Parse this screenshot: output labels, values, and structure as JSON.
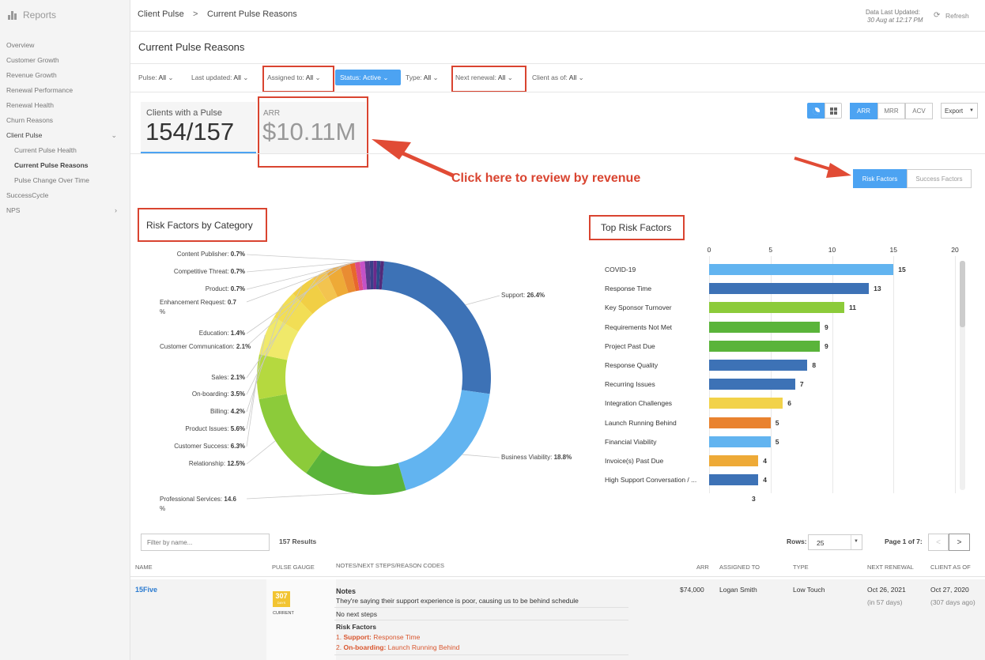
{
  "sidebar": {
    "brand": "Reports",
    "items": [
      "Overview",
      "Customer Growth",
      "Revenue Growth",
      "Renewal Performance",
      "Renewal Health",
      "Churn Reasons",
      "Client Pulse",
      "Current Pulse Health",
      "Current Pulse Reasons",
      "Pulse Change Over Time",
      "SuccessCycle",
      "NPS"
    ]
  },
  "header": {
    "breadcrumb_root": "Client Pulse",
    "breadcrumb_sep": ">",
    "breadcrumb_current": "Current Pulse Reasons",
    "updated_label": "Data Last Updated:",
    "updated_value": "30 Aug at 12:17 PM",
    "refresh": "Refresh"
  },
  "page_title": "Current Pulse Reasons",
  "filters": [
    {
      "label": "Pulse:",
      "value": "All"
    },
    {
      "label": "Last updated:",
      "value": "All"
    },
    {
      "label": "Assigned to:",
      "value": "All"
    },
    {
      "label": "Status:",
      "value": "Active"
    },
    {
      "label": "Type:",
      "value": "All"
    },
    {
      "label": "Next renewal:",
      "value": "All"
    },
    {
      "label": "Client as of:",
      "value": "All"
    }
  ],
  "kpis": {
    "clients_label": "Clients with a Pulse",
    "clients_value": "154/157",
    "arr_label": "ARR",
    "arr_value": "$10.11M"
  },
  "toolbar": {
    "arr": "ARR",
    "mrr": "MRR",
    "acv": "ACV",
    "export": "Export",
    "risk": "Risk Factors",
    "success": "Success Factors"
  },
  "annotation": "Click here to review by revenue",
  "donut_title": "Risk Factors by Category",
  "bar_title": "Top Risk Factors",
  "chart_data": [
    {
      "type": "pie",
      "title": "Risk Factors by Category",
      "categories": [
        "Support",
        "Business Viability",
        "Professional Services",
        "Relationship",
        "Customer Success",
        "Product Issues",
        "Billing",
        "On-boarding",
        "Sales",
        "Customer Communication",
        "Education",
        "Enhancement Request",
        "Product",
        "Competitive Threat",
        "Content Publisher"
      ],
      "values": [
        26.4,
        18.8,
        14.6,
        12.5,
        6.3,
        5.6,
        4.2,
        3.5,
        2.1,
        2.1,
        1.4,
        0.7,
        0.7,
        0.7,
        0.7
      ],
      "labels": [
        "26.4%",
        "18.8%",
        "14.6",
        "12.5%",
        "6.3%",
        "5.6%",
        "4.2%",
        "3.5%",
        "2.1%",
        "2.1%",
        "1.4%",
        "0.7",
        "0.7%",
        "0.7%",
        "0.7%"
      ],
      "label_tail": [
        "",
        "",
        "%",
        "",
        "",
        "",
        "",
        "",
        "",
        "",
        "",
        "%",
        "",
        "",
        ""
      ],
      "colors": [
        "#3d72b6",
        "#62b4f0",
        "#5ab43a",
        "#8ccb3a",
        "#b5d93f",
        "#f0e96a",
        "#f2de55",
        "#f1cf45",
        "#f3c44f",
        "#eeaa37",
        "#e98c32",
        "#e8682c",
        "#dd4c8a",
        "#c552c7",
        "#5a3a8a"
      ],
      "extra_colors": [
        "#3a3f8a",
        "#6a2a8a",
        "#2a4a8a",
        "#512a7a"
      ]
    },
    {
      "type": "bar",
      "orientation": "horizontal",
      "title": "Top Risk Factors",
      "categories": [
        "COVID-19",
        "Response Time",
        "Key Sponsor Turnover",
        "Requirements Not Met",
        "Project Past Due",
        "Response Quality",
        "Recurring Issues",
        "Integration Challenges",
        "Launch Running Behind",
        "Financial Viability",
        "Invoice(s) Past Due",
        "High Support Conversation / ..."
      ],
      "values": [
        15,
        13,
        11,
        9,
        9,
        8,
        7,
        6,
        5,
        5,
        4,
        4
      ],
      "overflow_value": 3,
      "colors": [
        "#62b4f0",
        "#3d72b6",
        "#8ccb3a",
        "#5ab43a",
        "#5ab43a",
        "#3d72b6",
        "#3d72b6",
        "#f2d24a",
        "#e9822f",
        "#62b4f0",
        "#eeaa37",
        "#3d72b6"
      ],
      "xlim": [
        0,
        20
      ],
      "ticks": [
        "0",
        "5",
        "10",
        "15",
        "20"
      ]
    }
  ],
  "table": {
    "filter_placeholder": "Filter by name...",
    "results": "157 Results",
    "rows_label": "Rows:",
    "rows_value": "25",
    "page": "Page 1 of 7:",
    "prev": "<",
    "next": ">",
    "headers": [
      "Name",
      "Pulse Gauge",
      "Notes/Next Steps/Reason Codes",
      "ARR",
      "Assigned To",
      "Type",
      "Next Renewal",
      "Client As Of"
    ],
    "row": {
      "name": "15Five",
      "gauge_num": "307",
      "gauge_unit": "DAYS",
      "gauge_status": "CURRENT",
      "notes_title": "Notes",
      "notes": "They're saying their support experience is poor, causing us to be behind schedule",
      "next_steps": "No next steps",
      "risk_title": "Risk Factors",
      "risk1_num": "1.",
      "risk1_cat": "Support:",
      "risk1_val": "Response Time",
      "risk2_num": "2.",
      "risk2_cat": "On-boarding:",
      "risk2_val": "Launch Running Behind",
      "arr": "$74,000",
      "assigned": "Logan Smith",
      "type": "Low Touch",
      "renewal": "Oct 26, 2021",
      "renewal_sub": "(in 57 days)",
      "client_as_of": "Oct 27, 2020",
      "client_as_of_sub": "(307 days ago)"
    }
  }
}
